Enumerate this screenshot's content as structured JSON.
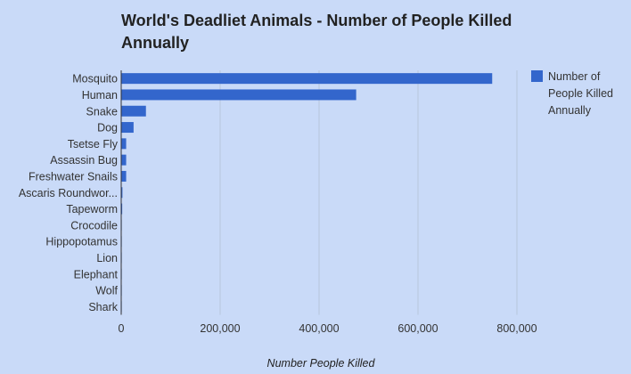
{
  "chart_data": {
    "type": "bar",
    "orientation": "horizontal",
    "title": "World's Deadliet Animals - Number of People Killed Annually",
    "xlabel": "Number People Killed",
    "ylabel": "",
    "categories": [
      "Mosquito",
      "Human",
      "Snake",
      "Dog",
      "Tsetse Fly",
      "Assassin Bug",
      "Freshwater Snails",
      "Ascaris Roundwor...",
      "Tapeworm",
      "Crocodile",
      "Hippopotamus",
      "Lion",
      "Elephant",
      "Wolf",
      "Shark"
    ],
    "series": [
      {
        "name": "Number of People Killed Annually",
        "color": "#3366cc",
        "values": [
          750000,
          475000,
          50000,
          25000,
          10000,
          10000,
          10000,
          2500,
          2000,
          1000,
          500,
          100,
          100,
          10,
          10
        ]
      }
    ],
    "xlim": [
      0,
      800000
    ],
    "xticks": [
      0,
      200000,
      400000,
      600000,
      800000
    ],
    "xtick_labels": [
      "0",
      "200,000",
      "400,000",
      "600,000",
      "800,000"
    ],
    "grid": true,
    "legend": {
      "position": "right",
      "lines": [
        "Number of",
        "People Killed",
        "Annually"
      ]
    }
  }
}
